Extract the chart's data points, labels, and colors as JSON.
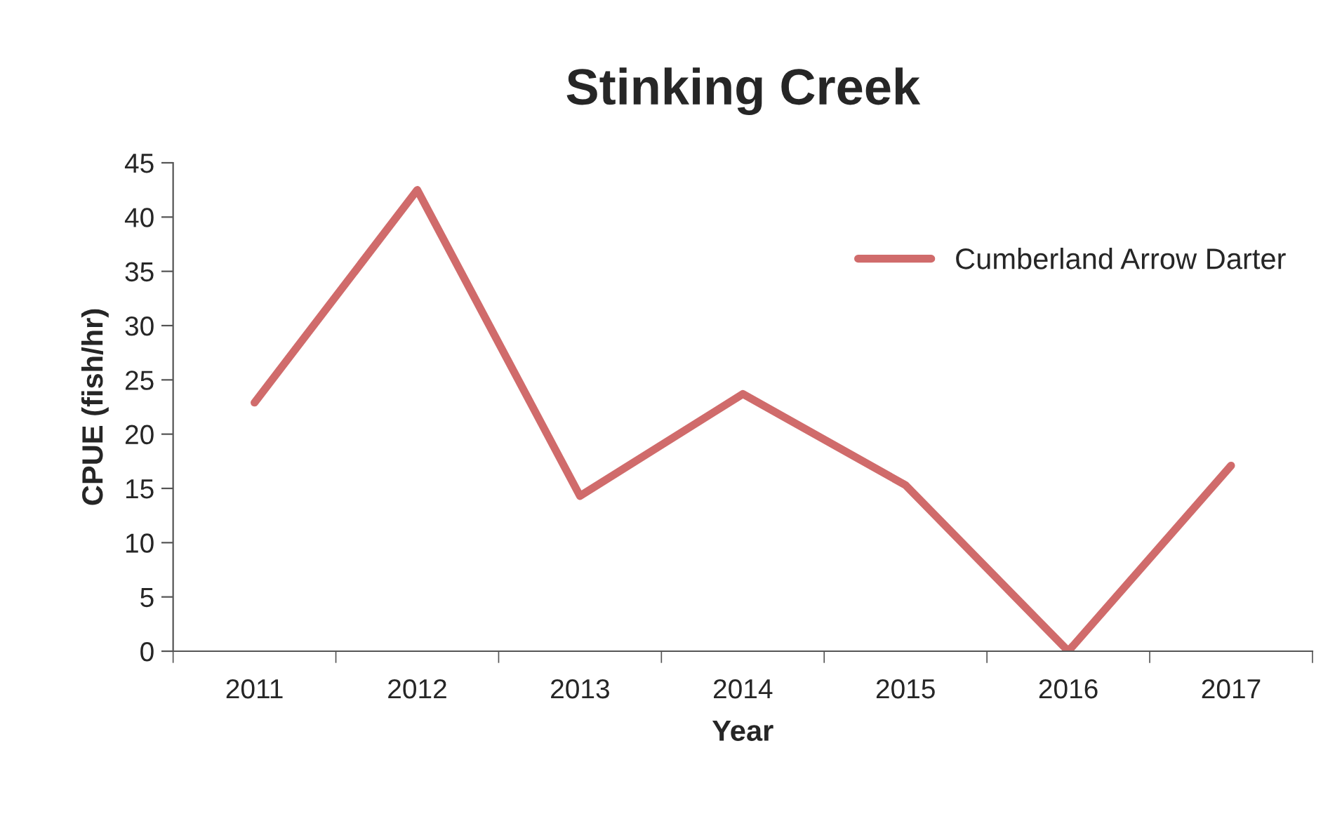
{
  "chart_data": {
    "type": "line",
    "title": "Stinking Creek",
    "xlabel": "Year",
    "ylabel": "CPUE (fish/hr)",
    "categories": [
      "2011",
      "2012",
      "2013",
      "2014",
      "2015",
      "2016",
      "2017"
    ],
    "series": [
      {
        "name": "Cumberland Arrow Darter",
        "color": "#d06b6b",
        "values": [
          22.9,
          42.5,
          14.3,
          23.7,
          15.3,
          0,
          17.1
        ]
      }
    ],
    "ylim": [
      0,
      45
    ],
    "yticks": [
      0,
      5,
      10,
      15,
      20,
      25,
      30,
      35,
      40,
      45
    ],
    "legend": "top right",
    "grid": false
  }
}
